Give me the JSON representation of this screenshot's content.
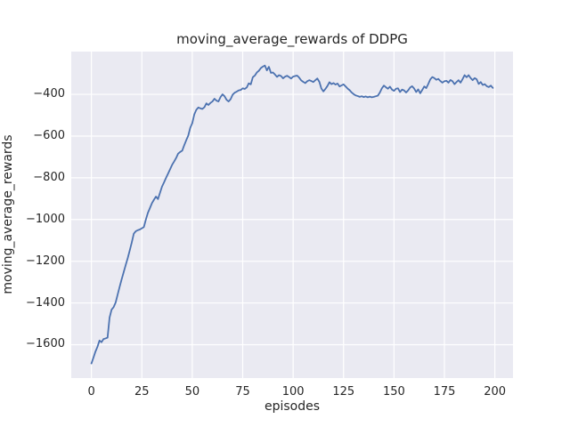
{
  "chart_data": {
    "type": "line",
    "title": "moving_average_rewards of DDPG",
    "xlabel": "episodes",
    "ylabel": "moving_average_rewards",
    "x_ticks": [
      0,
      25,
      50,
      75,
      100,
      125,
      150,
      175,
      200
    ],
    "y_ticks": [
      -400,
      -600,
      -800,
      -1000,
      -1200,
      -1400,
      -1600
    ],
    "xlim": [
      -10,
      209
    ],
    "ylim": [
      -1760,
      -195
    ],
    "grid": true,
    "legend_position": "none",
    "colors": {
      "plot_background": "#eaeaf2",
      "grid": "#ffffff",
      "line": "#4c72b0",
      "text": "#262626",
      "figure_background": "#ffffff"
    },
    "series": [
      {
        "name": "moving_average_rewards",
        "x": [
          0,
          1,
          2,
          3,
          4,
          5,
          6,
          7,
          8,
          9,
          10,
          11,
          12,
          13,
          14,
          15,
          16,
          17,
          18,
          19,
          20,
          21,
          22,
          23,
          24,
          25,
          26,
          27,
          28,
          29,
          30,
          31,
          32,
          33,
          34,
          35,
          36,
          37,
          38,
          39,
          40,
          41,
          42,
          43,
          44,
          45,
          46,
          47,
          48,
          49,
          50,
          51,
          52,
          53,
          54,
          55,
          56,
          57,
          58,
          59,
          60,
          61,
          62,
          63,
          64,
          65,
          66,
          67,
          68,
          69,
          70,
          71,
          72,
          73,
          74,
          75,
          76,
          77,
          78,
          79,
          80,
          81,
          82,
          83,
          84,
          85,
          86,
          87,
          88,
          89,
          90,
          91,
          92,
          93,
          94,
          95,
          96,
          97,
          98,
          99,
          100,
          101,
          102,
          103,
          104,
          105,
          106,
          107,
          108,
          109,
          110,
          111,
          112,
          113,
          114,
          115,
          116,
          117,
          118,
          119,
          120,
          121,
          122,
          123,
          124,
          125,
          126,
          127,
          128,
          129,
          130,
          131,
          132,
          133,
          134,
          135,
          136,
          137,
          138,
          139,
          140,
          141,
          142,
          143,
          144,
          145,
          146,
          147,
          148,
          149,
          150,
          151,
          152,
          153,
          154,
          155,
          156,
          157,
          158,
          159,
          160,
          161,
          162,
          163,
          164,
          165,
          166,
          167,
          168,
          169,
          170,
          171,
          172,
          173,
          174,
          175,
          176,
          177,
          178,
          179,
          180,
          181,
          182,
          183,
          184,
          185,
          186,
          187,
          188,
          189,
          190,
          191,
          192,
          193,
          194,
          195,
          196,
          197,
          198,
          199
        ],
        "y": [
          -1690,
          -1662,
          -1633,
          -1610,
          -1580,
          -1588,
          -1573,
          -1570,
          -1566,
          -1470,
          -1432,
          -1420,
          -1398,
          -1360,
          -1322,
          -1286,
          -1252,
          -1218,
          -1185,
          -1148,
          -1110,
          -1068,
          -1056,
          -1051,
          -1048,
          -1042,
          -1036,
          -1000,
          -968,
          -945,
          -922,
          -905,
          -890,
          -902,
          -872,
          -842,
          -822,
          -800,
          -780,
          -759,
          -738,
          -722,
          -705,
          -684,
          -676,
          -670,
          -644,
          -620,
          -598,
          -560,
          -538,
          -496,
          -474,
          -463,
          -467,
          -470,
          -462,
          -443,
          -451,
          -441,
          -434,
          -421,
          -430,
          -434,
          -413,
          -400,
          -409,
          -426,
          -434,
          -423,
          -402,
          -392,
          -387,
          -381,
          -379,
          -371,
          -374,
          -367,
          -347,
          -352,
          -318,
          -310,
          -295,
          -287,
          -274,
          -267,
          -262,
          -285,
          -268,
          -297,
          -295,
          -305,
          -316,
          -308,
          -312,
          -323,
          -315,
          -311,
          -317,
          -324,
          -315,
          -312,
          -310,
          -320,
          -333,
          -340,
          -346,
          -337,
          -332,
          -336,
          -341,
          -332,
          -324,
          -340,
          -372,
          -386,
          -374,
          -360,
          -342,
          -351,
          -346,
          -353,
          -348,
          -362,
          -357,
          -352,
          -362,
          -372,
          -380,
          -391,
          -399,
          -405,
          -408,
          -412,
          -409,
          -413,
          -410,
          -414,
          -411,
          -414,
          -412,
          -409,
          -406,
          -391,
          -371,
          -358,
          -366,
          -373,
          -363,
          -377,
          -383,
          -373,
          -371,
          -389,
          -377,
          -381,
          -391,
          -381,
          -367,
          -361,
          -372,
          -389,
          -376,
          -395,
          -379,
          -362,
          -370,
          -350,
          -328,
          -317,
          -322,
          -330,
          -326,
          -336,
          -344,
          -337,
          -335,
          -344,
          -331,
          -337,
          -351,
          -341,
          -332,
          -344,
          -327,
          -308,
          -318,
          -308,
          -322,
          -332,
          -322,
          -328,
          -350,
          -341,
          -355,
          -351,
          -361,
          -365,
          -358,
          -369
        ]
      }
    ]
  }
}
